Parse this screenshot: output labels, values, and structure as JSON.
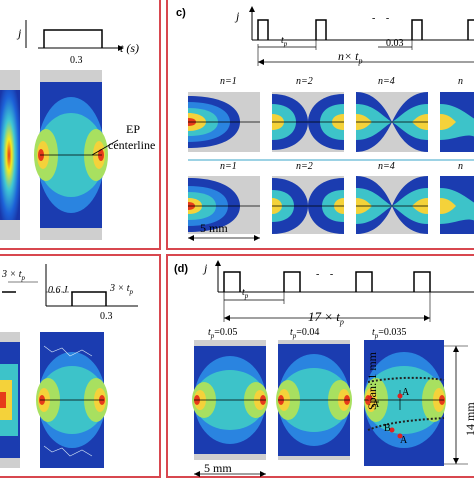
{
  "panel_a": {
    "j_label": "j",
    "t_label": "t (s)",
    "tick": "0.3",
    "ep_label": "EP",
    "centerline_label": "centerline"
  },
  "panel_b": {
    "formula": "3 × t",
    "formula_sub": "p",
    "j_level": "0.6 J",
    "formula2": "3 × t",
    "formula2_sub": "p",
    "tick": "0.3"
  },
  "panel_c": {
    "label": "c)",
    "j_label": "j",
    "tp_label": "t",
    "tp_sub": "p",
    "dashes": "- -",
    "value": "0.03",
    "n_tp": "n× t",
    "n_tp_sub": "p",
    "row1": [
      "n=1",
      "n=2",
      "n=4",
      "n"
    ],
    "row2": [
      "n=1",
      "n=2",
      "n=4",
      "n"
    ],
    "scale": "5 mm"
  },
  "panel_d": {
    "label": "(d)",
    "j_label": "j",
    "tp_label": "t",
    "tp_sub": "p",
    "dashes": "- -",
    "total": "17 ×  t",
    "total_sub": "p",
    "captions": [
      "t",
      "t",
      "t"
    ],
    "caption_subs": [
      "p",
      "p",
      "p"
    ],
    "caption_vals": [
      "=0.05",
      "=0.04",
      "=0.035"
    ],
    "scale": "5 mm",
    "height_label": "14 mm",
    "span_label": "Span: 1 mm",
    "point_a": "A",
    "point_a1": "A",
    "point_a2": "A",
    "point_b1": "B"
  },
  "colors": {
    "frame": "#d8474f",
    "separator": "#7cc3dc"
  }
}
